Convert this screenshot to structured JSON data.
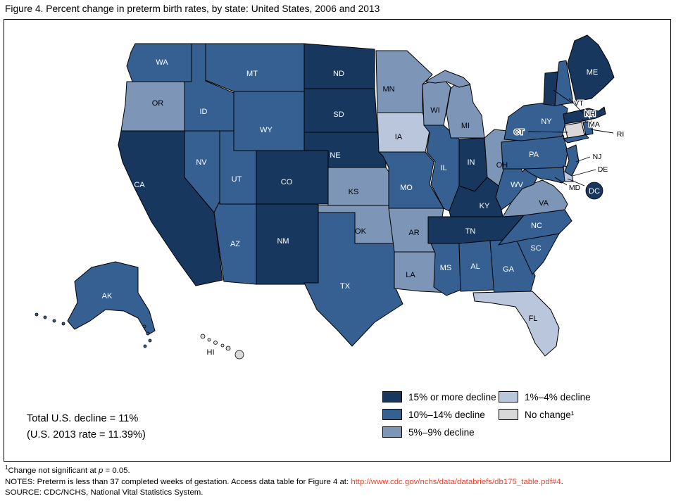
{
  "figure": {
    "title": "Figure 4. Percent change in preterm birth rates, by state: United States, 2006 and 2013"
  },
  "colors": {
    "background": "#FFFFFF",
    "border": "#000000",
    "link_red": "#E8432C"
  },
  "map": {
    "categories": {
      "decline15plus": {
        "label": "15% or more decline",
        "color": "#17375E",
        "text_color": "#FFFFFF"
      },
      "decline10to14": {
        "label": "10%–14% decline",
        "color": "#366092",
        "text_color": "#FFFFFF"
      },
      "decline5to9": {
        "label": "5%–9% decline",
        "color": "#7D96B8",
        "text_color": "#000000"
      },
      "decline1to4": {
        "label": "1%–4% decline",
        "color": "#BAC6DC",
        "text_color": "#000000"
      },
      "nochange": {
        "label": "No change¹",
        "color": "#D9D9D9",
        "text_color": "#000000"
      }
    },
    "states": [
      {
        "abbr": "WA",
        "label": "WA",
        "category": "decline10to14"
      },
      {
        "abbr": "OR",
        "label": "OR",
        "category": "decline5to9"
      },
      {
        "abbr": "CA",
        "label": "CA",
        "category": "decline15plus"
      },
      {
        "abbr": "AK",
        "label": "AK",
        "category": "decline10to14"
      },
      {
        "abbr": "HI",
        "label": "HI",
        "category": "nochange"
      },
      {
        "abbr": "ID",
        "label": "ID",
        "category": "decline10to14"
      },
      {
        "abbr": "NV",
        "label": "NV",
        "category": "decline10to14"
      },
      {
        "abbr": "MT",
        "label": "MT",
        "category": "decline10to14"
      },
      {
        "abbr": "WY",
        "label": "WY",
        "category": "decline10to14"
      },
      {
        "abbr": "UT",
        "label": "UT",
        "category": "decline10to14"
      },
      {
        "abbr": "AZ",
        "label": "AZ",
        "category": "decline10to14"
      },
      {
        "abbr": "NM",
        "label": "NM",
        "category": "decline15plus"
      },
      {
        "abbr": "CO",
        "label": "CO",
        "category": "decline15plus"
      },
      {
        "abbr": "ND",
        "label": "ND",
        "category": "decline15plus"
      },
      {
        "abbr": "SD",
        "label": "SD",
        "category": "decline15plus"
      },
      {
        "abbr": "NE",
        "label": "NE",
        "category": "decline15plus"
      },
      {
        "abbr": "KS",
        "label": "KS",
        "category": "decline5to9"
      },
      {
        "abbr": "OK",
        "label": "OK",
        "category": "decline5to9"
      },
      {
        "abbr": "TX",
        "label": "TX",
        "category": "decline10to14"
      },
      {
        "abbr": "MN",
        "label": "MN",
        "category": "decline5to9"
      },
      {
        "abbr": "IA",
        "label": "IA",
        "category": "decline1to4"
      },
      {
        "abbr": "MO",
        "label": "MO",
        "category": "decline10to14"
      },
      {
        "abbr": "AR",
        "label": "AR",
        "category": "decline5to9"
      },
      {
        "abbr": "LA",
        "label": "LA",
        "category": "decline5to9"
      },
      {
        "abbr": "WI",
        "label": "WI",
        "category": "decline5to9"
      },
      {
        "abbr": "IL",
        "label": "IL",
        "category": "decline10to14"
      },
      {
        "abbr": "MI",
        "label": "MI",
        "category": "decline5to9"
      },
      {
        "abbr": "IN",
        "label": "IN",
        "category": "decline15plus"
      },
      {
        "abbr": "OH",
        "label": "OH",
        "category": "decline5to9"
      },
      {
        "abbr": "KY",
        "label": "KY",
        "category": "decline15plus"
      },
      {
        "abbr": "TN",
        "label": "TN",
        "category": "decline15plus"
      },
      {
        "abbr": "MS",
        "label": "MS",
        "category": "decline10to14"
      },
      {
        "abbr": "AL",
        "label": "AL",
        "category": "decline10to14"
      },
      {
        "abbr": "GA",
        "label": "GA",
        "category": "decline10to14"
      },
      {
        "abbr": "FL",
        "label": "FL",
        "category": "decline1to4"
      },
      {
        "abbr": "SC",
        "label": "SC",
        "category": "decline10to14"
      },
      {
        "abbr": "NC",
        "label": "NC",
        "category": "decline10to14"
      },
      {
        "abbr": "VA",
        "label": "VA",
        "category": "decline5to9"
      },
      {
        "abbr": "WV",
        "label": "WV",
        "category": "decline10to14"
      },
      {
        "abbr": "PA",
        "label": "PA",
        "category": "decline10to14"
      },
      {
        "abbr": "MD",
        "label": "MD",
        "category": "decline10to14"
      },
      {
        "abbr": "DE",
        "label": "DE",
        "category": "decline1to4"
      },
      {
        "abbr": "NY",
        "label": "NY",
        "category": "decline10to14"
      },
      {
        "abbr": "NJ",
        "label": "NJ",
        "category": "decline10to14"
      },
      {
        "abbr": "CT",
        "label": "CT",
        "category": "nochange"
      },
      {
        "abbr": "MA",
        "label": "MA",
        "category": "decline15plus"
      },
      {
        "abbr": "RI",
        "label": "RI",
        "category": "decline10to14"
      },
      {
        "abbr": "VT",
        "label": "VT",
        "category": "decline15plus"
      },
      {
        "abbr": "NH",
        "label": "NH",
        "category": "decline10to14"
      },
      {
        "abbr": "ME",
        "label": "ME",
        "category": "decline15plus"
      },
      {
        "abbr": "DC",
        "label": "DC",
        "category": "decline15plus"
      }
    ]
  },
  "legend": {
    "column1": [
      "decline15plus",
      "decline10to14",
      "decline5to9"
    ],
    "column2": [
      "decline1to4",
      "nochange"
    ]
  },
  "annotation": {
    "line1": "Total U.S. decline = 11%",
    "line2": "(U.S. 2013 rate = 11.39%)"
  },
  "footnotes": {
    "note1": {
      "sup": "1",
      "pre": "Change not significant at ",
      "var": "p",
      "post": " = 0.05."
    },
    "notes_prefix": "NOTES: Preterm is less than 37 completed weeks of gestation. Access data table for Figure 4 at: ",
    "link": "http://www.cdc.gov/nchs/data/databriefs/db175_table.pdf#4",
    "suffix": ".",
    "source": "SOURCE: CDC/NCHS, National Vital Statistics System."
  }
}
